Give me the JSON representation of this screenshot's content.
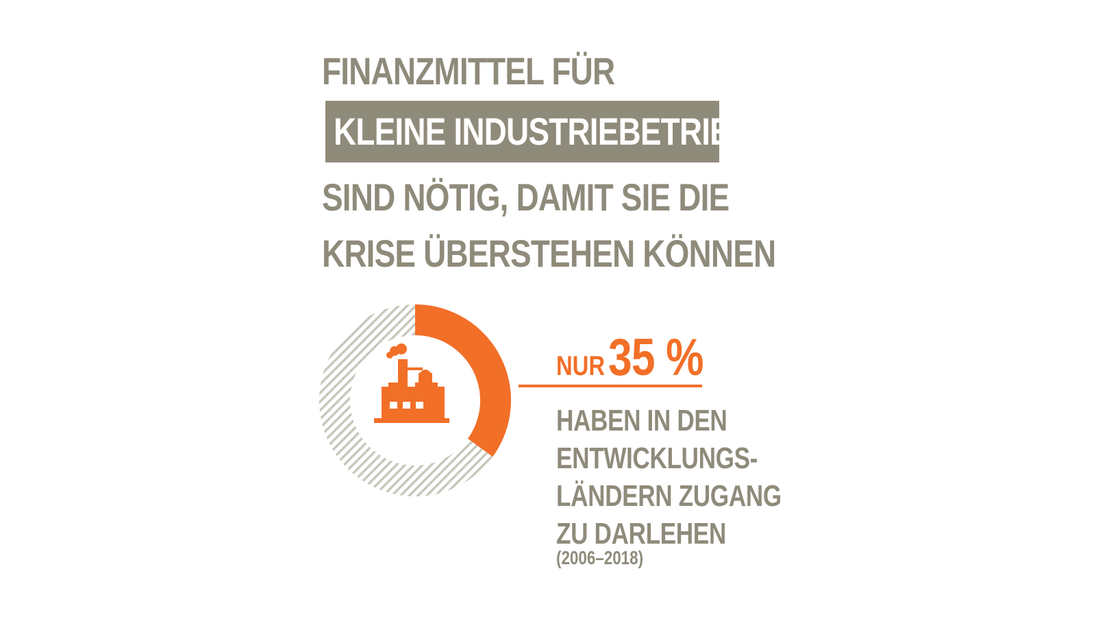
{
  "headline": {
    "line1": "FINANZMITTEL FÜR",
    "highlight": "KLEINE INDUSTRIEBETRIEBE",
    "line3": "SIND NÖTIG, DAMIT SIE DIE",
    "line4": "KRISE ÜBERSTEHEN KÖNNEN"
  },
  "chart_data": {
    "type": "pie",
    "style": "donut",
    "values": [
      35,
      65
    ],
    "center_icon": "factory-icon",
    "colors": {
      "highlight": "#f26f27",
      "rest_stripe": "#c9c6bb"
    }
  },
  "stat": {
    "prefix": "NUR",
    "value_text": "35 %",
    "description_lines": [
      "HABEN IN DEN",
      "ENTWICKLUNGS-",
      "LÄNDERN ZUGANG",
      "ZU DARLEHEN"
    ],
    "period": "(2006–2018)"
  },
  "colors": {
    "accent": "#f26f27",
    "text_gray": "#8f8b7b"
  }
}
